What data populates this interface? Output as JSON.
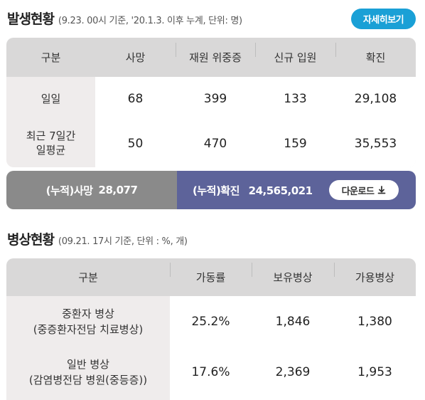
{
  "occurrence": {
    "title": "발생현황",
    "subtitle": "(9.23. 00시 기준, '20.1.3. 이후 누계, 단위: 명)",
    "detail_button": "자세히보기",
    "headers": [
      "구분",
      "사망",
      "재원 위중증",
      "신규 입원",
      "확진"
    ],
    "rows": [
      {
        "label_lines": [
          "일일"
        ],
        "values": [
          "68",
          "399",
          "133",
          "29,108"
        ]
      },
      {
        "label_lines": [
          "최근 7일간",
          "일평균"
        ],
        "values": [
          "50",
          "470",
          "159",
          "35,553"
        ]
      }
    ],
    "cumulative": {
      "death_label": "(누적)사망",
      "death_value": "28,077",
      "confirmed_label": "(누적)확진",
      "confirmed_value": "24,565,021",
      "download_button": "다운로드"
    }
  },
  "beds": {
    "title": "병상현황",
    "subtitle": "(09.21. 17시 기준, 단위 : %, 개)",
    "headers": [
      "구분",
      "가동률",
      "보유병상",
      "가용병상"
    ],
    "rows": [
      {
        "label_lines": [
          "중환자 병상",
          "(중증환자전담 치료병상)"
        ],
        "values": [
          "25.2%",
          "1,846",
          "1,380"
        ]
      },
      {
        "label_lines": [
          "일반 병상",
          "(감염병전담 병원(중등증))"
        ],
        "values": [
          "17.6%",
          "2,369",
          "1,953"
        ]
      }
    ]
  },
  "icons": {
    "download": "download-icon"
  },
  "colors": {
    "detail_button": "#1aa0d6",
    "cumulative_death_bg": "#8a8a8a",
    "cumulative_confirmed_bg": "#5d639a",
    "table_header_bg": "#d9d8d8",
    "row_label_bg": "#efecec"
  }
}
